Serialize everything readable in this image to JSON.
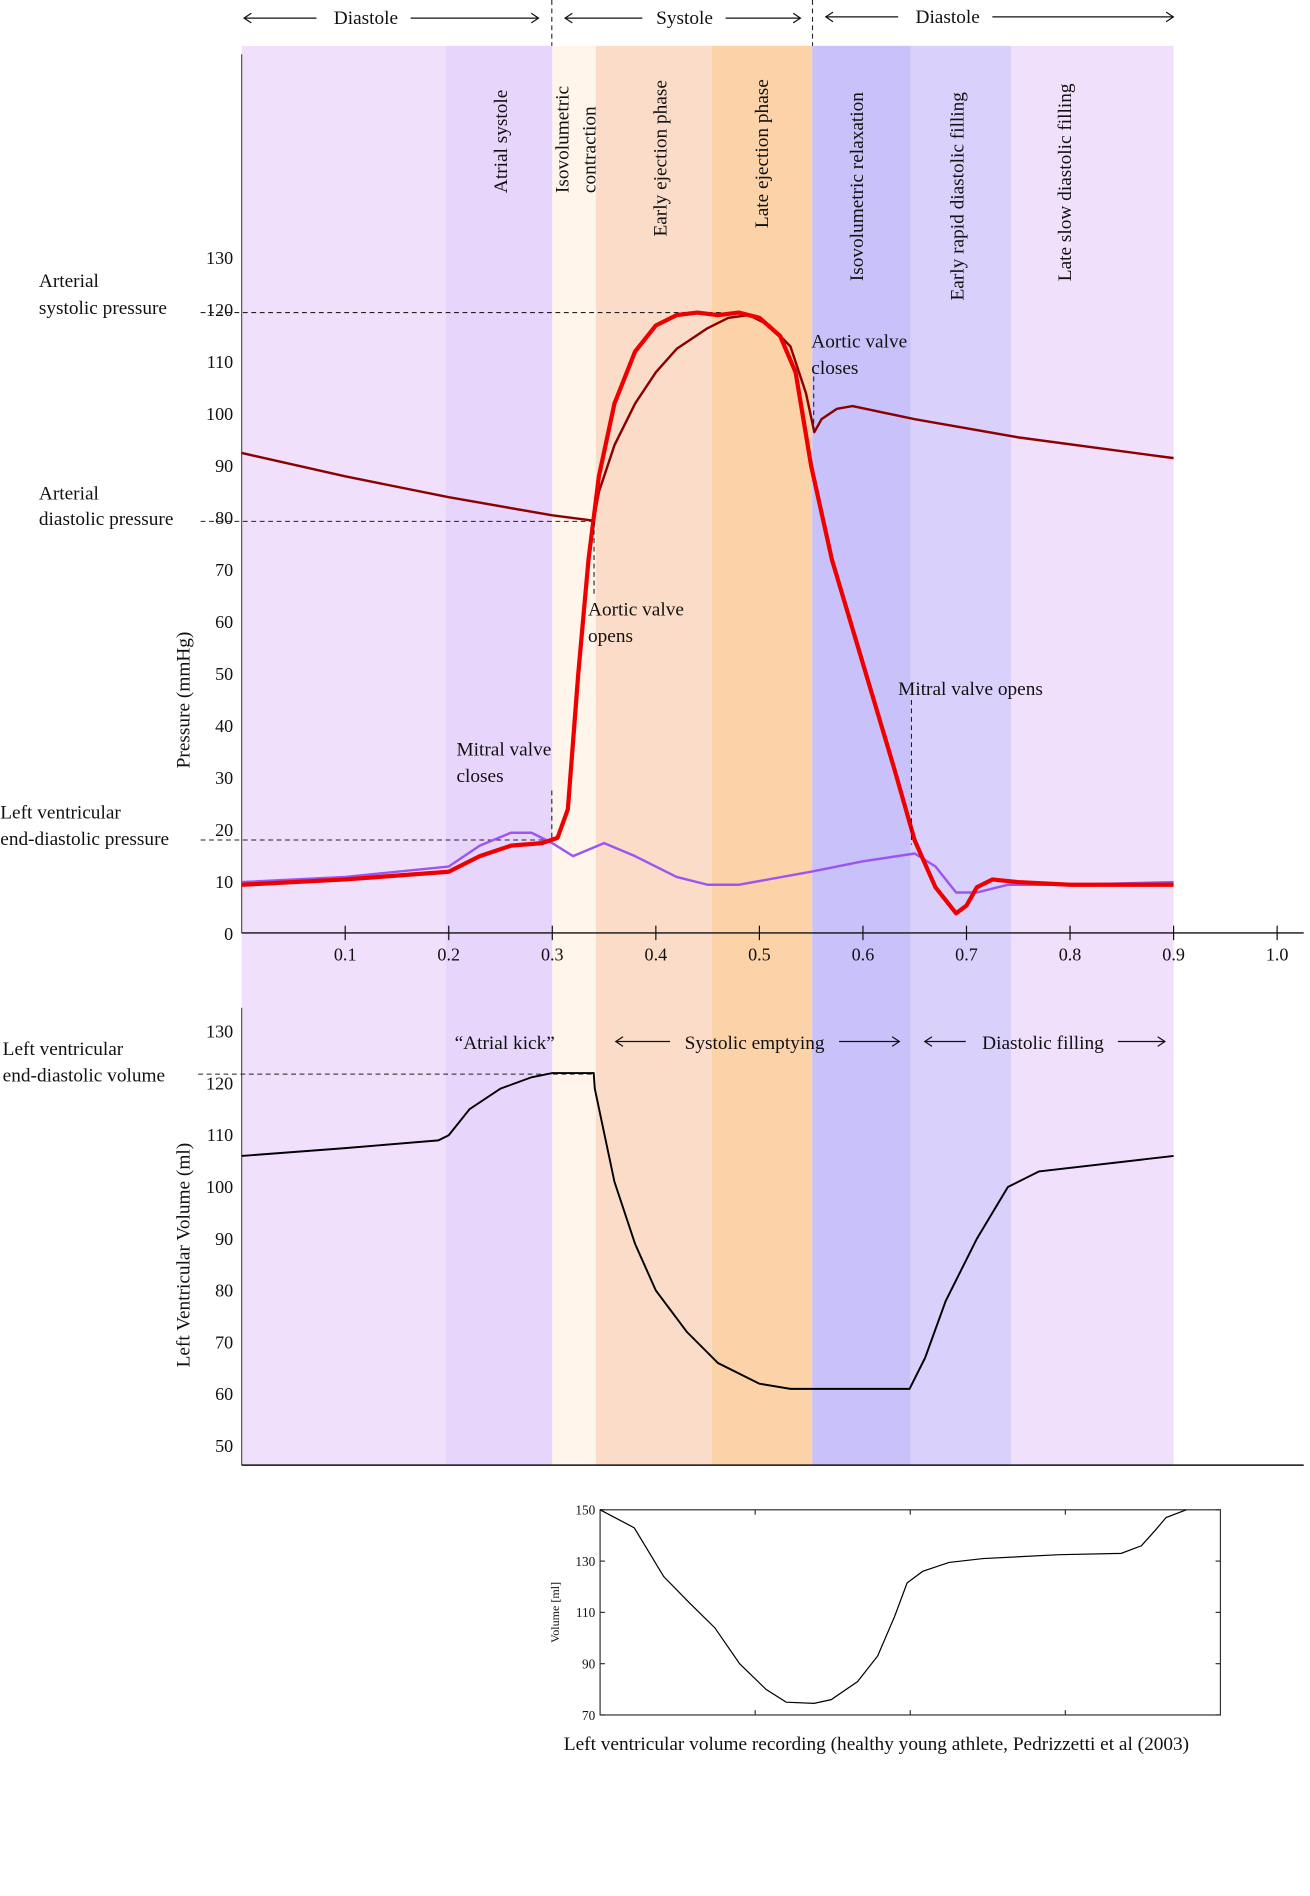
{
  "header": {
    "left": "Diastole",
    "middle": "Systole",
    "right": "Diastole"
  },
  "phases": [
    {
      "label": "",
      "from": 0.0,
      "to": 0.197,
      "color": "#f0e0fc"
    },
    {
      "label": "Atrial systole",
      "from": 0.197,
      "to": 0.3,
      "color": "#e8d5fc"
    },
    {
      "label": "Isovolumetric contraction",
      "lines": [
        "Isovolumetric",
        "contraction"
      ],
      "from": 0.3,
      "to": 0.342,
      "color": "#fff5ea"
    },
    {
      "label": "Early ejection phase",
      "from": 0.342,
      "to": 0.454,
      "color": "#fadcc8"
    },
    {
      "label": "Late ejection phase",
      "from": 0.454,
      "to": 0.551,
      "color": "#fcd3a8"
    },
    {
      "label": "Isovolumetric relaxation",
      "from": 0.551,
      "to": 0.646,
      "color": "#c9c2fa"
    },
    {
      "label": "Early rapid diastolic filling",
      "from": 0.646,
      "to": 0.743,
      "color": "#d9d0fc"
    },
    {
      "label": "Late slow diastolic filling",
      "from": 0.743,
      "to": 0.9,
      "color": "#f0e0fc"
    }
  ],
  "chart_data": [
    {
      "type": "line",
      "ylabel": "Pressure (mmHg)",
      "xlim": [
        0,
        1.0
      ],
      "ylim": [
        0,
        130
      ],
      "xticks": [
        "0.1",
        "0.2",
        "0.3",
        "0.4",
        "0.5",
        "0.6",
        "0.7",
        "0.8",
        "0.9",
        "1.0"
      ],
      "yticks": [
        "0",
        "10",
        "20",
        "30",
        "40",
        "50",
        "60",
        "70",
        "80",
        "90",
        "100",
        "110",
        "120",
        "130"
      ],
      "series": [
        {
          "color": "#8b0000",
          "points": [
            [
              0,
              92.5
            ],
            [
              0.1,
              88
            ],
            [
              0.2,
              84
            ],
            [
              0.3,
              80.5
            ],
            [
              0.34,
              79.5
            ],
            [
              0.345,
              85
            ],
            [
              0.36,
              94
            ],
            [
              0.38,
              102
            ],
            [
              0.4,
              108
            ],
            [
              0.42,
              112.5
            ],
            [
              0.45,
              116.5
            ],
            [
              0.47,
              118.5
            ],
            [
              0.49,
              119
            ],
            [
              0.51,
              117
            ],
            [
              0.53,
              113
            ],
            [
              0.545,
              104
            ],
            [
              0.553,
              96.5
            ],
            [
              0.56,
              99
            ],
            [
              0.575,
              101
            ],
            [
              0.59,
              101.5
            ],
            [
              0.65,
              99
            ],
            [
              0.75,
              95.5
            ],
            [
              0.9,
              91.5
            ]
          ]
        },
        {
          "color": "#9b55f0",
          "points": [
            [
              0,
              10
            ],
            [
              0.1,
              11
            ],
            [
              0.2,
              13
            ],
            [
              0.23,
              17
            ],
            [
              0.26,
              19.5
            ],
            [
              0.28,
              19.5
            ],
            [
              0.3,
              17.5
            ],
            [
              0.32,
              15
            ],
            [
              0.35,
              17.5
            ],
            [
              0.38,
              15
            ],
            [
              0.42,
              11
            ],
            [
              0.45,
              9.5
            ],
            [
              0.48,
              9.5
            ],
            [
              0.55,
              12
            ],
            [
              0.6,
              14
            ],
            [
              0.65,
              15.5
            ],
            [
              0.67,
              13
            ],
            [
              0.69,
              8
            ],
            [
              0.71,
              8
            ],
            [
              0.74,
              9.5
            ],
            [
              0.8,
              9.5
            ],
            [
              0.9,
              10
            ]
          ]
        },
        {
          "color": "#ee0000",
          "points": [
            [
              0,
              9.5
            ],
            [
              0.1,
              10.5
            ],
            [
              0.2,
              12
            ],
            [
              0.23,
              15
            ],
            [
              0.26,
              17
            ],
            [
              0.29,
              17.5
            ],
            [
              0.305,
              18.5
            ],
            [
              0.315,
              24
            ],
            [
              0.325,
              50
            ],
            [
              0.335,
              72
            ],
            [
              0.345,
              88
            ],
            [
              0.36,
              102
            ],
            [
              0.38,
              112
            ],
            [
              0.4,
              117
            ],
            [
              0.42,
              119
            ],
            [
              0.44,
              119.5
            ],
            [
              0.46,
              119
            ],
            [
              0.48,
              119.5
            ],
            [
              0.5,
              118.5
            ],
            [
              0.52,
              115
            ],
            [
              0.535,
              108
            ],
            [
              0.55,
              90
            ],
            [
              0.57,
              72
            ],
            [
              0.6,
              52
            ],
            [
              0.63,
              32
            ],
            [
              0.65,
              18
            ],
            [
              0.67,
              9
            ],
            [
              0.69,
              4
            ],
            [
              0.7,
              5.5
            ],
            [
              0.71,
              9
            ],
            [
              0.725,
              10.5
            ],
            [
              0.75,
              10
            ],
            [
              0.8,
              9.5
            ],
            [
              0.9,
              9.5
            ]
          ]
        }
      ],
      "reference_lines": [
        {
          "label": "Arterial systolic pressure",
          "value": 120
        },
        {
          "label": "Arterial diastolic pressure",
          "value": 80
        },
        {
          "label": "Left ventricular end-diastolic pressure",
          "value": 18
        }
      ],
      "annotations": {
        "aortic_opens": "Aortic valve opens",
        "aortic_closes": "Aortic valve closes",
        "mitral_closes": "Mitral valve closes",
        "mitral_opens": "Mitral valve opens"
      }
    },
    {
      "type": "line",
      "ylabel": "Left Ventricular Volume (ml)",
      "ylim": [
        50,
        130
      ],
      "yticks": [
        "50",
        "60",
        "70",
        "80",
        "90",
        "100",
        "110",
        "120",
        "130"
      ],
      "series": [
        {
          "color": "#000000",
          "points": [
            [
              0,
              106
            ],
            [
              0.1,
              107.5
            ],
            [
              0.19,
              109
            ],
            [
              0.2,
              110
            ],
            [
              0.22,
              115
            ],
            [
              0.25,
              119
            ],
            [
              0.28,
              121.2
            ],
            [
              0.3,
              122
            ],
            [
              0.34,
              122
            ],
            [
              0.341,
              119
            ],
            [
              0.36,
              101
            ],
            [
              0.38,
              89
            ],
            [
              0.4,
              80
            ],
            [
              0.43,
              72
            ],
            [
              0.46,
              66
            ],
            [
              0.5,
              62
            ],
            [
              0.53,
              61
            ],
            [
              0.6,
              61
            ],
            [
              0.645,
              61
            ],
            [
              0.66,
              67
            ],
            [
              0.68,
              78
            ],
            [
              0.71,
              90
            ],
            [
              0.74,
              100
            ],
            [
              0.77,
              103
            ],
            [
              0.9,
              106
            ]
          ]
        }
      ],
      "reference_lines": [
        {
          "label": "Left ventricular end-diastolic volume",
          "value": 122
        }
      ],
      "annotations": {
        "atrial_kick": "“Atrial kick”",
        "systolic_emptying": "Systolic emptying",
        "diastolic_filling": "Diastolic filling"
      }
    },
    {
      "type": "line",
      "ylabel": "Volume [ml]",
      "xlim": [
        0,
        4
      ],
      "ylim": [
        70,
        150
      ],
      "yticks": [
        "70",
        "90",
        "110",
        "130",
        "150"
      ],
      "caption": "Left ventricular volume recording (healthy young athlete, Pedrizzetti et al (2003)",
      "series": [
        {
          "color": "#000000",
          "points": [
            [
              0,
              150
            ],
            [
              0.22,
              143
            ],
            [
              0.41,
              124
            ],
            [
              0.58,
              113.5
            ],
            [
              0.74,
              104
            ],
            [
              0.9,
              90
            ],
            [
              1.07,
              80
            ],
            [
              1.2,
              75
            ],
            [
              1.38,
              74.5
            ],
            [
              1.49,
              76
            ],
            [
              1.66,
              83
            ],
            [
              1.79,
              93
            ],
            [
              1.9,
              108.5
            ],
            [
              1.98,
              121.5
            ],
            [
              2.08,
              126
            ],
            [
              2.25,
              129.5
            ],
            [
              2.47,
              131
            ],
            [
              2.96,
              132.5
            ],
            [
              3.36,
              133
            ],
            [
              3.49,
              136
            ],
            [
              3.58,
              142
            ],
            [
              3.65,
              147
            ],
            [
              3.78,
              150
            ]
          ]
        }
      ]
    }
  ]
}
